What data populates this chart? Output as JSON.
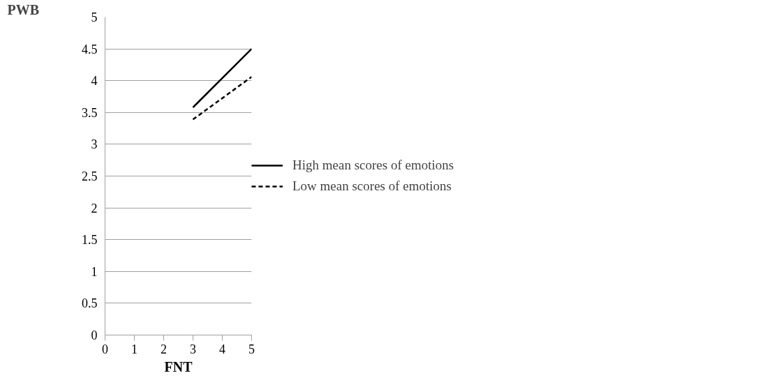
{
  "chart_data": {
    "type": "line",
    "xlabel": "FNT",
    "ylabel": "PWB",
    "x": [
      3,
      5
    ],
    "series": [
      {
        "name": "High mean scores of emotions",
        "color": "#000000",
        "values": [
          3.58,
          4.5
        ],
        "line_style": "solid"
      },
      {
        "name": "Low mean scores of emotions",
        "color": "#000000",
        "values": [
          3.39,
          4.06
        ],
        "line_style": "dashed"
      }
    ],
    "xlim": [
      0,
      5
    ],
    "ylim": [
      0,
      5
    ],
    "xticks": [
      0,
      1,
      2,
      3,
      4,
      5
    ],
    "yticks": [
      0,
      0.5,
      1,
      1.5,
      2,
      2.5,
      3,
      3.5,
      4,
      4.5,
      5
    ],
    "grid": "y",
    "legend": "right",
    "marker": "none"
  }
}
